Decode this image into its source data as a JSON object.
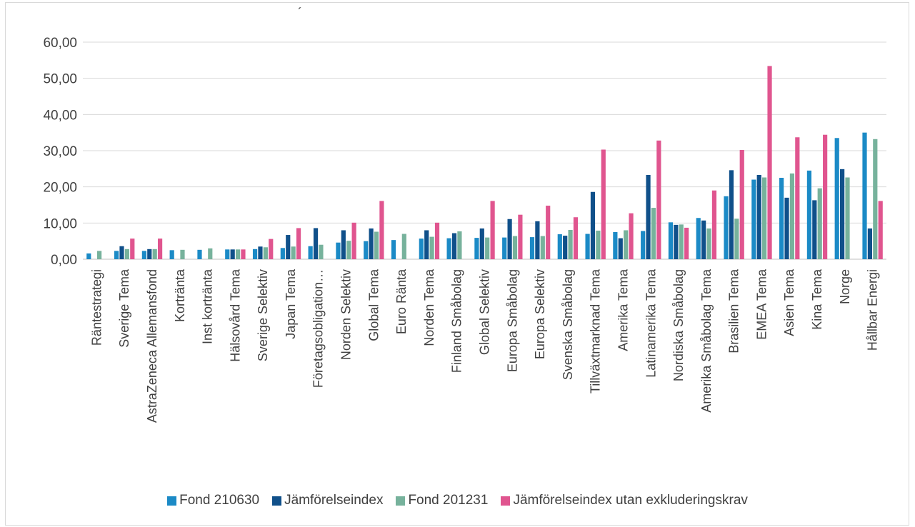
{
  "stray_mark": "´",
  "chart_data": {
    "type": "bar",
    "title": "",
    "xlabel": "",
    "ylabel": "",
    "ylim": [
      0,
      60
    ],
    "yticks": [
      "0,00",
      "10,00",
      "20,00",
      "30,00",
      "40,00",
      "50,00",
      "60,00"
    ],
    "grid": true,
    "legend_position": "bottom",
    "categories": [
      "Räntestrategi",
      "Sverige Tema",
      "AstraZeneca Allemansfond",
      "Kortränta",
      "Inst kortränta",
      "Hälsovård Tema",
      "Sverige Selektiv",
      "Japan Tema",
      "Företagsobligation…",
      "Norden Selektiv",
      "Global Tema",
      "Euro Ränta",
      "Norden Tema",
      "Finland Småbolag",
      "Global Selektiv",
      "Europa Småbolag",
      "Europa Selektiv",
      "Svenska Småbolag",
      "Tillväxtmarknad Tema",
      "Amerika Tema",
      "Latinamerika Tema",
      "Nordiska Småbolag",
      "Amerika Småbolag Tema",
      "Brasilien Tema",
      "EMEA Tema",
      "Asien Tema",
      "Kina Tema",
      "Norge",
      "Hållbar Energi"
    ],
    "series": [
      {
        "name": "Fond 210630",
        "color": "#1b8ac6",
        "values": [
          1.6,
          2.3,
          2.3,
          2.5,
          2.6,
          2.7,
          2.8,
          3.1,
          3.6,
          4.6,
          5.0,
          5.3,
          5.7,
          5.8,
          5.9,
          6.0,
          6.1,
          6.9,
          7.0,
          7.5,
          7.8,
          10.2,
          11.4,
          17.4,
          22.0,
          22.5,
          24.5,
          33.5,
          35.0
        ]
      },
      {
        "name": "Jämförelseindex",
        "color": "#10508a",
        "values": [
          null,
          3.6,
          2.8,
          null,
          null,
          2.7,
          3.5,
          6.7,
          8.6,
          8.0,
          8.5,
          null,
          8.0,
          7.2,
          8.5,
          11.1,
          10.5,
          6.5,
          18.6,
          5.8,
          23.3,
          9.5,
          10.7,
          24.6,
          23.3,
          17.0,
          16.3,
          24.9,
          8.5
        ]
      },
      {
        "name": "Fond 201231",
        "color": "#77b29c",
        "values": [
          2.3,
          2.8,
          2.8,
          2.6,
          3.0,
          2.7,
          3.3,
          3.5,
          4.0,
          5.1,
          7.6,
          7.0,
          6.2,
          7.7,
          6.0,
          6.4,
          6.4,
          8.1,
          7.9,
          8.0,
          14.2,
          9.6,
          8.5,
          11.2,
          22.6,
          23.7,
          19.6,
          22.6,
          33.2
        ]
      },
      {
        "name": "Jämförelseindex utan exkluderingskrav",
        "color": "#e0558f",
        "values": [
          null,
          5.7,
          5.7,
          null,
          null,
          2.7,
          5.6,
          8.6,
          null,
          10.1,
          16.1,
          null,
          10.1,
          null,
          16.1,
          12.3,
          14.8,
          11.6,
          30.3,
          12.7,
          32.8,
          8.7,
          19.0,
          30.2,
          53.4,
          33.7,
          34.4,
          null,
          16.1
        ]
      }
    ]
  }
}
